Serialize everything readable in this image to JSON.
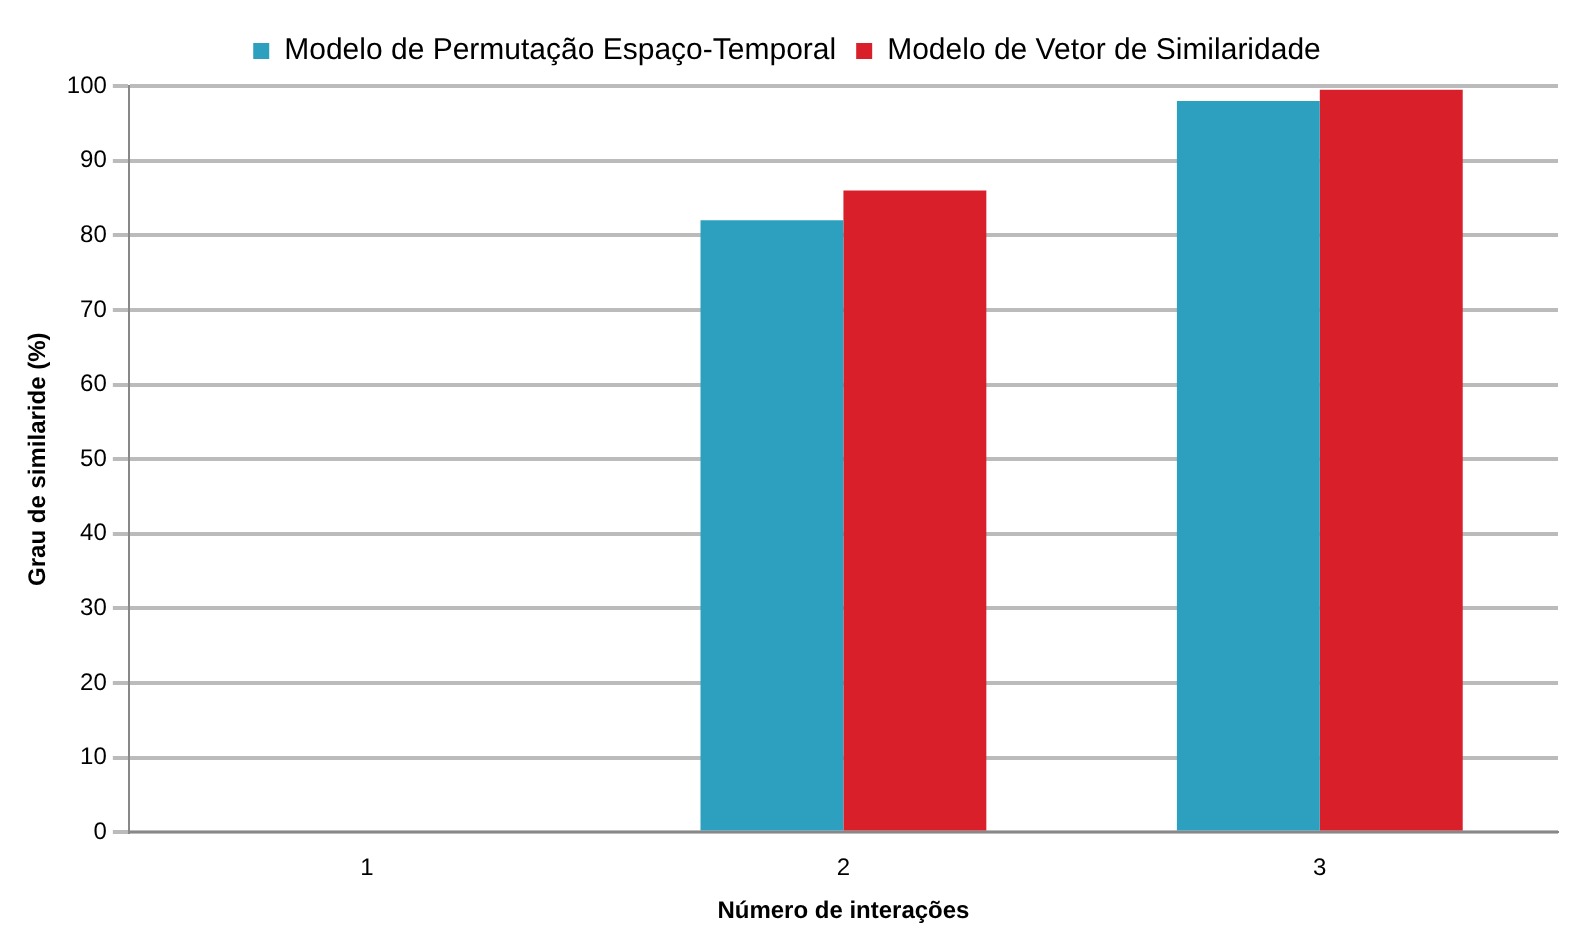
{
  "chart_data": {
    "type": "bar",
    "xlabel": "Número de interações",
    "ylabel": "Grau de similaride (%)",
    "categories": [
      "1",
      "2",
      "3"
    ],
    "series": [
      {
        "name": "Modelo de Permutação Espaço-Temporal",
        "color": "#2ea0bf",
        "values": [
          0,
          82,
          98
        ]
      },
      {
        "name": "Modelo de Vetor de Similaridade",
        "color": "#d9202a",
        "values": [
          0,
          86,
          99.5
        ]
      }
    ],
    "ylim": [
      0,
      100
    ],
    "yticks": [
      0,
      10,
      20,
      30,
      40,
      50,
      60,
      70,
      80,
      90,
      100
    ],
    "grid": "y",
    "legend": "top"
  }
}
